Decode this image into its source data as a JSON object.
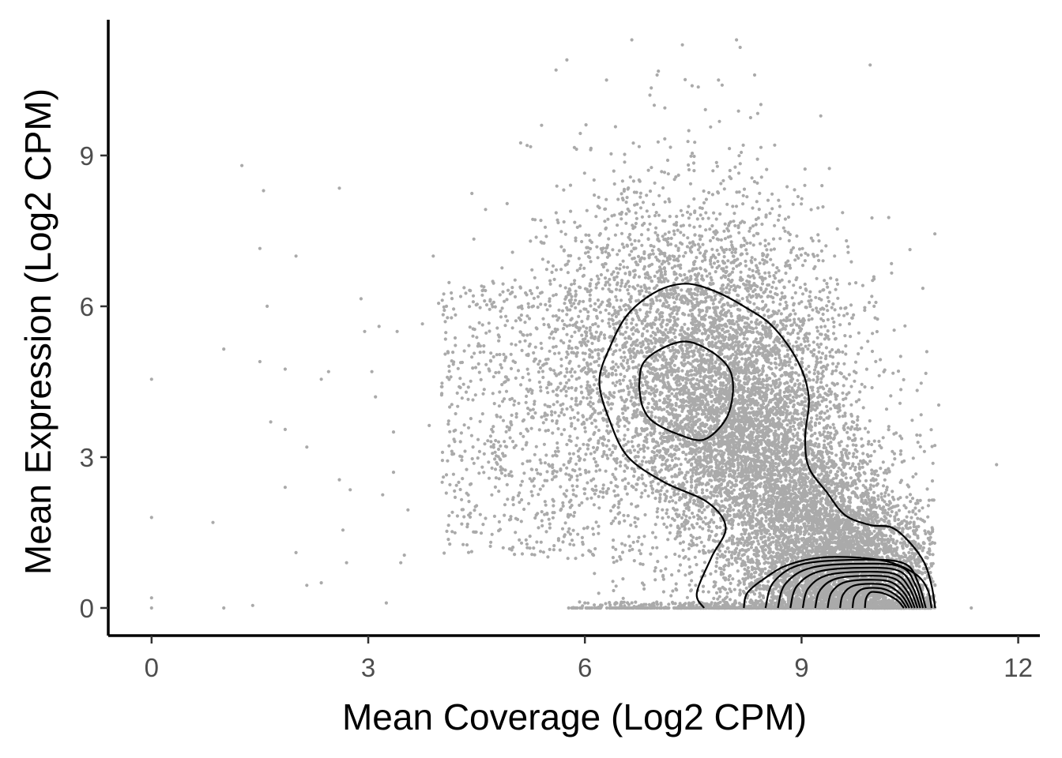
{
  "chart_data": {
    "type": "scatter",
    "title": "",
    "xlabel": "Mean Coverage (Log2 CPM)",
    "ylabel": "Mean Expression (Log2 CPM)",
    "xlim": [
      -0.6,
      12.3
    ],
    "ylim": [
      -0.55,
      11.7
    ],
    "x_ticks": [
      0,
      3,
      6,
      9,
      12
    ],
    "y_ticks": [
      0,
      3,
      6,
      9
    ],
    "x_tick_labels": [
      "0",
      "3",
      "6",
      "9",
      "12"
    ],
    "y_tick_labels": [
      "0",
      "3",
      "6",
      "9"
    ],
    "grid": false,
    "legend": "none",
    "colors": {
      "points": "#aaaaaa",
      "contours": "#000000",
      "axis": "#000000"
    },
    "point_cloud": {
      "approx_count": 14000,
      "main_cluster": {
        "x_center": 7.8,
        "y_center": 4.3,
        "x_sd": 1.0,
        "y_sd": 1.9
      },
      "zero_expression_band": {
        "y": 0,
        "x_range": [
          5.7,
          10.8
        ]
      }
    },
    "outliers": [
      [
        0.0,
        4.55
      ],
      [
        0.0,
        1.8
      ],
      [
        0.0,
        0.2
      ],
      [
        0.0,
        0.0
      ],
      [
        0.85,
        1.7
      ],
      [
        1.0,
        5.15
      ],
      [
        1.0,
        0.0
      ],
      [
        1.25,
        8.8
      ],
      [
        1.4,
        0.05
      ],
      [
        1.5,
        7.15
      ],
      [
        1.5,
        4.9
      ],
      [
        1.55,
        8.3
      ],
      [
        1.6,
        6.0
      ],
      [
        1.65,
        3.7
      ],
      [
        1.85,
        4.75
      ],
      [
        1.85,
        2.4
      ],
      [
        1.85,
        3.55
      ],
      [
        2.0,
        7.0
      ],
      [
        2.0,
        1.1
      ],
      [
        2.15,
        3.2
      ],
      [
        2.15,
        0.45
      ],
      [
        2.35,
        4.55
      ],
      [
        2.35,
        0.5
      ],
      [
        2.45,
        4.7
      ],
      [
        2.6,
        8.35
      ],
      [
        2.6,
        2.55
      ],
      [
        2.65,
        1.55
      ],
      [
        2.7,
        0.9
      ],
      [
        2.75,
        2.35
      ],
      [
        2.9,
        6.15
      ],
      [
        2.95,
        5.5
      ],
      [
        3.05,
        4.7
      ],
      [
        3.1,
        4.2
      ],
      [
        3.15,
        5.6
      ],
      [
        3.2,
        2.25
      ],
      [
        3.25,
        0.1
      ],
      [
        3.35,
        2.7
      ],
      [
        3.35,
        3.5
      ],
      [
        3.4,
        5.5
      ],
      [
        3.45,
        0.9
      ],
      [
        3.5,
        1.05
      ],
      [
        3.55,
        1.95
      ],
      [
        3.75,
        5.65
      ],
      [
        3.9,
        7.0
      ],
      [
        11.35,
        0.0
      ],
      [
        11.7,
        2.85
      ]
    ],
    "sparse_top": [
      [
        5.6,
        10.7
      ],
      [
        5.75,
        10.9
      ],
      [
        6.3,
        10.5
      ],
      [
        6.65,
        11.3
      ],
      [
        7.0,
        10.6
      ],
      [
        7.35,
        11.2
      ],
      [
        7.85,
        10.5
      ],
      [
        8.1,
        11.3
      ],
      [
        8.15,
        11.15
      ],
      [
        8.35,
        10.6
      ],
      [
        7.9,
        10.4
      ],
      [
        9.95,
        10.8
      ],
      [
        6.9,
        10.2
      ],
      [
        5.4,
        9.6
      ],
      [
        5.2,
        9.2
      ]
    ],
    "contours": [
      {
        "level": 1,
        "points": [
          [
            7.65,
            0.0
          ],
          [
            7.55,
            0.3
          ],
          [
            7.75,
            1.0
          ],
          [
            7.95,
            1.6
          ],
          [
            7.7,
            2.1
          ],
          [
            7.1,
            2.5
          ],
          [
            6.6,
            3.0
          ],
          [
            6.35,
            3.7
          ],
          [
            6.2,
            4.5
          ],
          [
            6.35,
            5.2
          ],
          [
            6.6,
            5.85
          ],
          [
            7.0,
            6.3
          ],
          [
            7.4,
            6.45
          ],
          [
            7.8,
            6.3
          ],
          [
            8.2,
            6.0
          ],
          [
            8.6,
            5.6
          ],
          [
            8.95,
            4.9
          ],
          [
            9.1,
            4.2
          ],
          [
            9.05,
            3.4
          ],
          [
            9.1,
            2.8
          ],
          [
            9.35,
            2.3
          ],
          [
            9.6,
            1.85
          ],
          [
            9.95,
            1.65
          ],
          [
            10.25,
            1.6
          ],
          [
            10.5,
            1.3
          ],
          [
            10.7,
            0.9
          ],
          [
            10.8,
            0.45
          ],
          [
            10.85,
            0.0
          ]
        ]
      },
      {
        "level": 2,
        "points": [
          [
            6.75,
            4.4
          ],
          [
            6.8,
            4.85
          ],
          [
            7.05,
            5.15
          ],
          [
            7.4,
            5.3
          ],
          [
            7.75,
            5.1
          ],
          [
            8.0,
            4.75
          ],
          [
            8.05,
            4.3
          ],
          [
            7.95,
            3.75
          ],
          [
            7.65,
            3.35
          ],
          [
            7.3,
            3.45
          ],
          [
            6.95,
            3.7
          ],
          [
            6.8,
            4.0
          ],
          [
            6.75,
            4.4
          ]
        ]
      },
      {
        "level": 1,
        "points": [
          [
            8.2,
            0.0
          ],
          [
            8.25,
            0.3
          ],
          [
            8.5,
            0.6
          ],
          [
            8.8,
            0.85
          ],
          [
            9.25,
            1.0
          ],
          [
            9.8,
            1.0
          ],
          [
            10.25,
            0.9
          ],
          [
            10.6,
            0.65
          ],
          [
            10.75,
            0.35
          ],
          [
            10.8,
            0.0
          ]
        ]
      }
    ],
    "mode_center": [
      10.1,
      0.2
    ],
    "mode_levels": 9
  }
}
